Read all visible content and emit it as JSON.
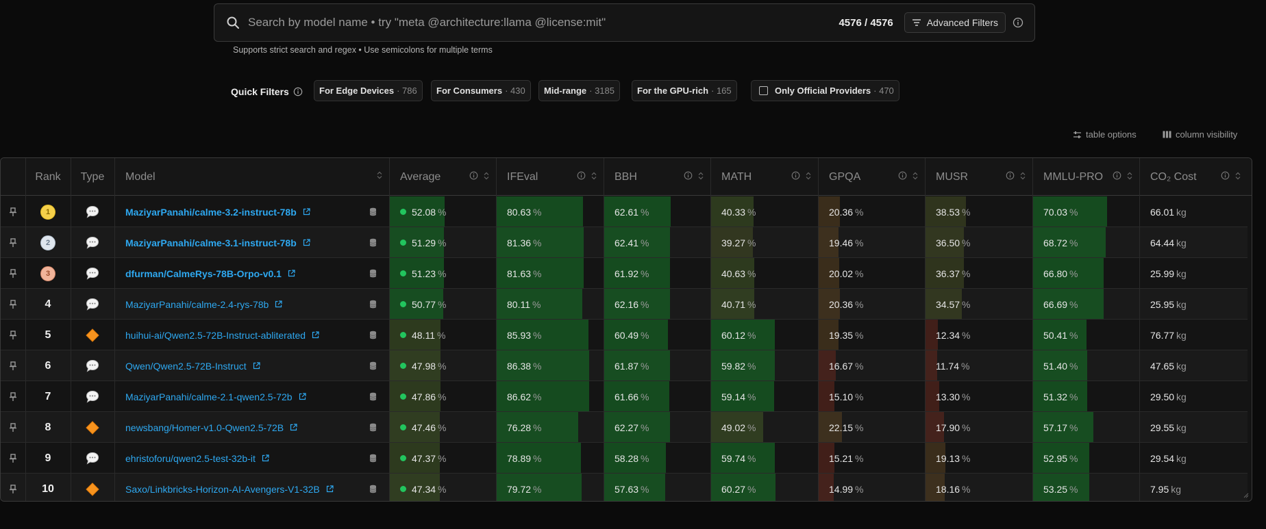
{
  "search": {
    "placeholder": "Search by model name • try \"meta @architecture:llama @license:mit\"",
    "count": "4576 / 4576",
    "advanced_filters_label": "Advanced Filters",
    "hint": "Supports strict search and regex • Use semicolons for multiple terms"
  },
  "quick_filters": {
    "label": "Quick Filters",
    "chips": [
      {
        "label": "For Edge Devices",
        "count": "· 786"
      },
      {
        "label": "For Consumers",
        "count": "· 430"
      },
      {
        "label": "Mid-range",
        "count": "· 3185"
      },
      {
        "label": "For the GPU-rich",
        "count": "· 165"
      },
      {
        "label": "Only Official Providers",
        "count": "· 470"
      }
    ]
  },
  "table_options": {
    "table_options_label": "table options",
    "column_visibility_label": "column visibility"
  },
  "columns": {
    "rank": "Rank",
    "type": "Type",
    "model": "Model",
    "average": "Average",
    "ifeval": "IFEval",
    "bbh": "BBH",
    "math": "MATH",
    "gpqa": "GPQA",
    "musr": "MUSR",
    "mmlu_pro": "MMLU-PRO",
    "co2": "CO₂ Cost"
  },
  "units": {
    "percent": "%",
    "kg": "kg"
  },
  "rows": [
    {
      "rank": "1",
      "type": "chat",
      "model": "MaziyarPanahi/calme-3.2-instruct-78b",
      "average": "52.08",
      "ifeval": "80.63",
      "bbh": "62.61",
      "math": "40.33",
      "gpqa": "20.36",
      "musr": "38.53",
      "mmlu_pro": "70.03",
      "co2": "66.01"
    },
    {
      "rank": "2",
      "type": "chat",
      "model": "MaziyarPanahi/calme-3.1-instruct-78b",
      "average": "51.29",
      "ifeval": "81.36",
      "bbh": "62.41",
      "math": "39.27",
      "gpqa": "19.46",
      "musr": "36.50",
      "mmlu_pro": "68.72",
      "co2": "64.44"
    },
    {
      "rank": "3",
      "type": "chat",
      "model": "dfurman/CalmeRys-78B-Orpo-v0.1",
      "average": "51.23",
      "ifeval": "81.63",
      "bbh": "61.92",
      "math": "40.63",
      "gpqa": "20.02",
      "musr": "36.37",
      "mmlu_pro": "66.80",
      "co2": "25.99"
    },
    {
      "rank": "4",
      "type": "chat",
      "model": "MaziyarPanahi/calme-2.4-rys-78b",
      "average": "50.77",
      "ifeval": "80.11",
      "bbh": "62.16",
      "math": "40.71",
      "gpqa": "20.36",
      "musr": "34.57",
      "mmlu_pro": "66.69",
      "co2": "25.95"
    },
    {
      "rank": "5",
      "type": "finetune",
      "model": "huihui-ai/Qwen2.5-72B-Instruct-abliterated",
      "average": "48.11",
      "ifeval": "85.93",
      "bbh": "60.49",
      "math": "60.12",
      "gpqa": "19.35",
      "musr": "12.34",
      "mmlu_pro": "50.41",
      "co2": "76.77"
    },
    {
      "rank": "6",
      "type": "chat",
      "model": "Qwen/Qwen2.5-72B-Instruct",
      "average": "47.98",
      "ifeval": "86.38",
      "bbh": "61.87",
      "math": "59.82",
      "gpqa": "16.67",
      "musr": "11.74",
      "mmlu_pro": "51.40",
      "co2": "47.65"
    },
    {
      "rank": "7",
      "type": "chat",
      "model": "MaziyarPanahi/calme-2.1-qwen2.5-72b",
      "average": "47.86",
      "ifeval": "86.62",
      "bbh": "61.66",
      "math": "59.14",
      "gpqa": "15.10",
      "musr": "13.30",
      "mmlu_pro": "51.32",
      "co2": "29.50"
    },
    {
      "rank": "8",
      "type": "finetune",
      "model": "newsbang/Homer-v1.0-Qwen2.5-72B",
      "average": "47.46",
      "ifeval": "76.28",
      "bbh": "62.27",
      "math": "49.02",
      "gpqa": "22.15",
      "musr": "17.90",
      "mmlu_pro": "57.17",
      "co2": "29.55"
    },
    {
      "rank": "9",
      "type": "chat",
      "model": "ehristoforu/qwen2.5-test-32b-it",
      "average": "47.37",
      "ifeval": "78.89",
      "bbh": "58.28",
      "math": "59.74",
      "gpqa": "15.21",
      "musr": "19.13",
      "mmlu_pro": "52.95",
      "co2": "29.54"
    },
    {
      "rank": "10",
      "type": "finetune",
      "model": "Saxo/Linkbricks-Horizon-AI-Avengers-V1-32B",
      "average": "47.34",
      "ifeval": "79.72",
      "bbh": "57.63",
      "math": "60.27",
      "gpqa": "14.99",
      "musr": "18.16",
      "mmlu_pro": "53.25",
      "co2": "7.95"
    }
  ]
}
